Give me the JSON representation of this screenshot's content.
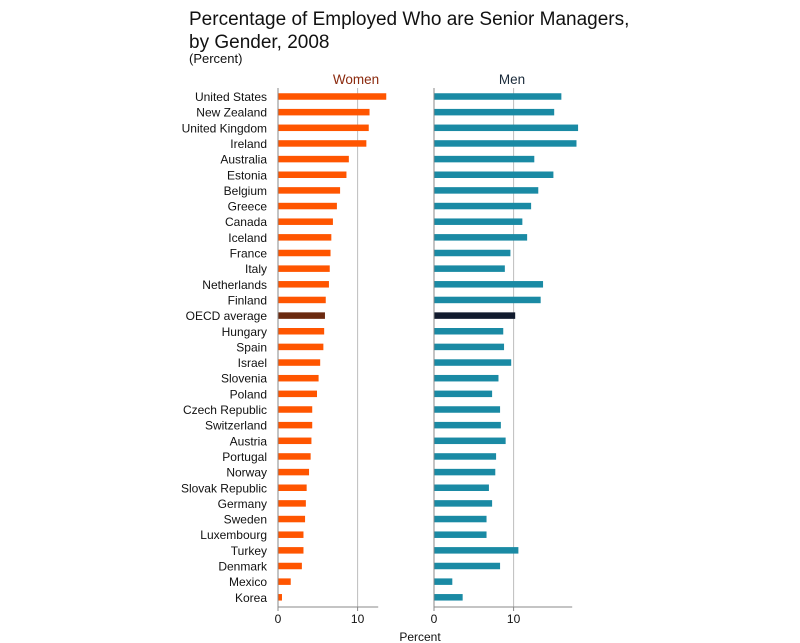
{
  "chart_data": {
    "type": "bar",
    "orientation": "horizontal",
    "title_lines": [
      "Percentage of Employed Who are Senior Managers,",
      "by Gender, 2008"
    ],
    "subtitle": "(Percent)",
    "xlabel": "Percent",
    "xlim": [
      0,
      20
    ],
    "xticks": [
      "0",
      "10"
    ],
    "grid": true,
    "highlight_category": "OECD average",
    "categories": [
      "United States",
      "New Zealand",
      "United Kingdom",
      "Ireland",
      "Australia",
      "Estonia",
      "Belgium",
      "Greece",
      "Canada",
      "Iceland",
      "France",
      "Italy",
      "Netherlands",
      "Finland",
      "OECD average",
      "Hungary",
      "Spain",
      "Israel",
      "Slovenia",
      "Poland",
      "Czech Republic",
      "Switzerland",
      "Austria",
      "Portugal",
      "Norway",
      "Slovak Republic",
      "Germany",
      "Sweden",
      "Luxembourg",
      "Turkey",
      "Denmark",
      "Mexico",
      "Korea"
    ],
    "series": [
      {
        "name": "Women",
        "color": "#ff5500",
        "highlight_color": "#6b2a10",
        "label_color": "#8b2a0e",
        "values": [
          13.6,
          11.5,
          11.4,
          11.1,
          8.9,
          8.6,
          7.8,
          7.4,
          6.9,
          6.7,
          6.6,
          6.5,
          6.4,
          6.0,
          5.9,
          5.8,
          5.7,
          5.3,
          5.1,
          4.9,
          4.3,
          4.3,
          4.2,
          4.1,
          3.9,
          3.6,
          3.5,
          3.4,
          3.2,
          3.2,
          3.0,
          1.6,
          0.5
        ]
      },
      {
        "name": "Men",
        "color": "#1a8aa4",
        "highlight_color": "#111b2e",
        "label_color": "#1a2a3a",
        "values": [
          16.0,
          15.1,
          18.1,
          17.9,
          12.6,
          15.0,
          13.1,
          12.2,
          11.1,
          11.7,
          9.6,
          8.9,
          13.7,
          13.4,
          10.2,
          8.7,
          8.8,
          9.7,
          8.1,
          7.3,
          8.3,
          8.4,
          9.0,
          7.8,
          7.7,
          6.9,
          7.3,
          6.6,
          6.6,
          10.6,
          8.3,
          2.3,
          3.6
        ]
      }
    ]
  }
}
